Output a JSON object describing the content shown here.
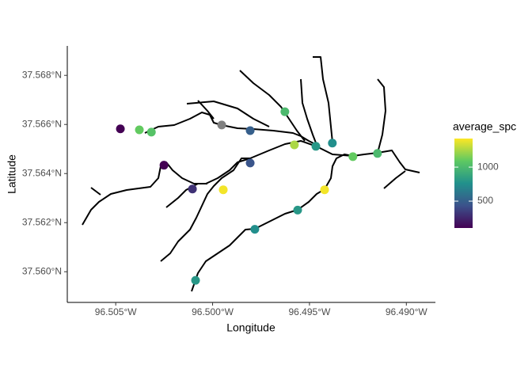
{
  "chart_data": {
    "type": "scatter",
    "x_label": "Longitude",
    "y_label": "Latitude",
    "colorbar_title": "average_spc",
    "x": [
      -96.50476,
      -96.50378,
      -96.50316,
      -96.50251,
      -96.50104,
      -96.49953,
      -96.49945,
      -96.49806,
      -96.49806,
      -96.49627,
      -96.49578,
      -96.49467,
      -96.49382,
      -96.49422,
      -96.49276,
      -96.49149,
      -96.49561,
      -96.49782,
      -96.50088
    ],
    "y": [
      37.56582,
      37.56578,
      37.56569,
      37.56434,
      37.56337,
      37.56598,
      37.56334,
      37.56575,
      37.56443,
      37.56652,
      37.56517,
      37.56511,
      37.56524,
      37.56334,
      37.56469,
      37.56482,
      37.56251,
      37.56173,
      37.55965
    ],
    "color_values": [
      60,
      1100,
      1050,
      100,
      300,
      null,
      1400,
      500,
      450,
      1000,
      1250,
      800,
      750,
      1400,
      1100,
      1000,
      800,
      750,
      800
    ],
    "na_color": "#808080",
    "xlim": [
      -96.5075,
      -96.4885
    ],
    "ylim": [
      37.55875,
      37.5692
    ],
    "xticks": [
      {
        "value": -96.505,
        "label": "96.505°W"
      },
      {
        "value": -96.5,
        "label": "96.500°W"
      },
      {
        "value": -96.495,
        "label": "96.495°W"
      },
      {
        "value": -96.49,
        "label": "96.490°W"
      }
    ],
    "yticks": [
      {
        "value": 37.56,
        "label": "37.560°N"
      },
      {
        "value": 37.562,
        "label": "37.562°N"
      },
      {
        "value": 37.564,
        "label": "37.564°N"
      },
      {
        "value": 37.566,
        "label": "37.566°N"
      },
      {
        "value": 37.568,
        "label": "37.568°N"
      }
    ],
    "colorbar_lim": [
      105,
      1420
    ],
    "colorbar_ticks": [
      500,
      1000
    ]
  }
}
